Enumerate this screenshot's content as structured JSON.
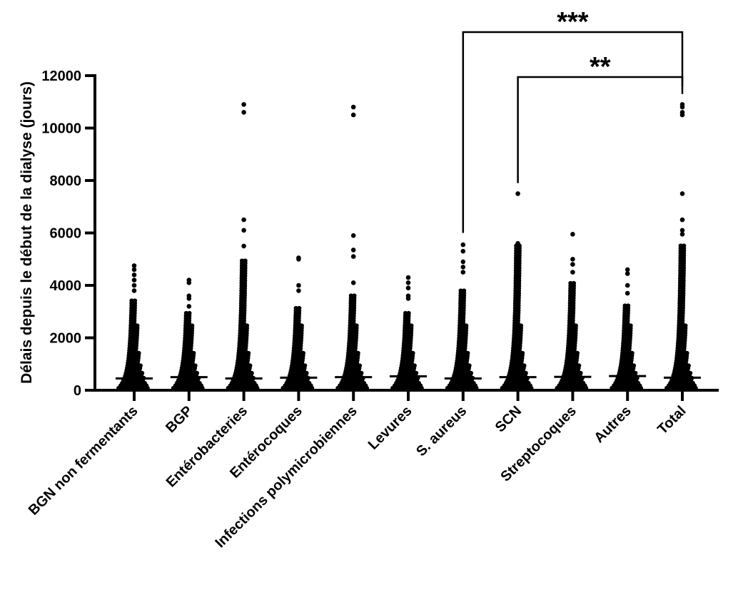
{
  "chart_data": {
    "type": "scatter",
    "subtype": "dot-plot with median lines",
    "title": "",
    "xlabel": "",
    "ylabel": "Délais depuis le début de la dialyse (jours)",
    "ylim": [
      0,
      12000
    ],
    "yticks": [
      "0",
      "2000",
      "4000",
      "6000",
      "8000",
      "10000",
      "12000"
    ],
    "ytick_values": [
      0,
      2000,
      4000,
      6000,
      8000,
      10000,
      12000
    ],
    "grid": false,
    "categories": [
      "BGN non fermentants",
      "BGP",
      "Entérobacteries",
      "Entérocoques",
      "Infections polymicrobiennes",
      "Levures",
      "S. aureus",
      "SCN",
      "Streptocoques",
      "Autres",
      "Total"
    ],
    "medians": [
      450,
      500,
      450,
      480,
      500,
      530,
      450,
      500,
      510,
      540,
      480
    ],
    "dense_upper": [
      3500,
      3000,
      5000,
      3200,
      3700,
      3000,
      3800,
      5600,
      4100,
      3300,
      5600
    ],
    "outliers": [
      [
        4750,
        4600,
        4400,
        4200,
        4000,
        3800
      ],
      [
        4200,
        4100,
        3600,
        3500,
        3200
      ],
      [
        10900,
        10600,
        6500,
        6100,
        5500
      ],
      [
        5050,
        5000,
        4000,
        3800
      ],
      [
        10800,
        10500,
        5900,
        5350,
        5100,
        4100
      ],
      [
        4300,
        4100,
        3900,
        3600,
        3500
      ],
      [
        5550,
        5300,
        4900,
        4700,
        4500
      ],
      [
        7500,
        5600
      ],
      [
        5950,
        5000,
        4800,
        4500
      ],
      [
        4600,
        4450,
        4000,
        3700
      ],
      [
        10900,
        10800,
        10600,
        10500,
        7500,
        6500,
        6100,
        5950
      ]
    ],
    "comparisons": [
      {
        "from": "S. aureus",
        "to": "Total",
        "label": "***"
      },
      {
        "from": "SCN",
        "to": "Total",
        "label": "**"
      }
    ]
  }
}
